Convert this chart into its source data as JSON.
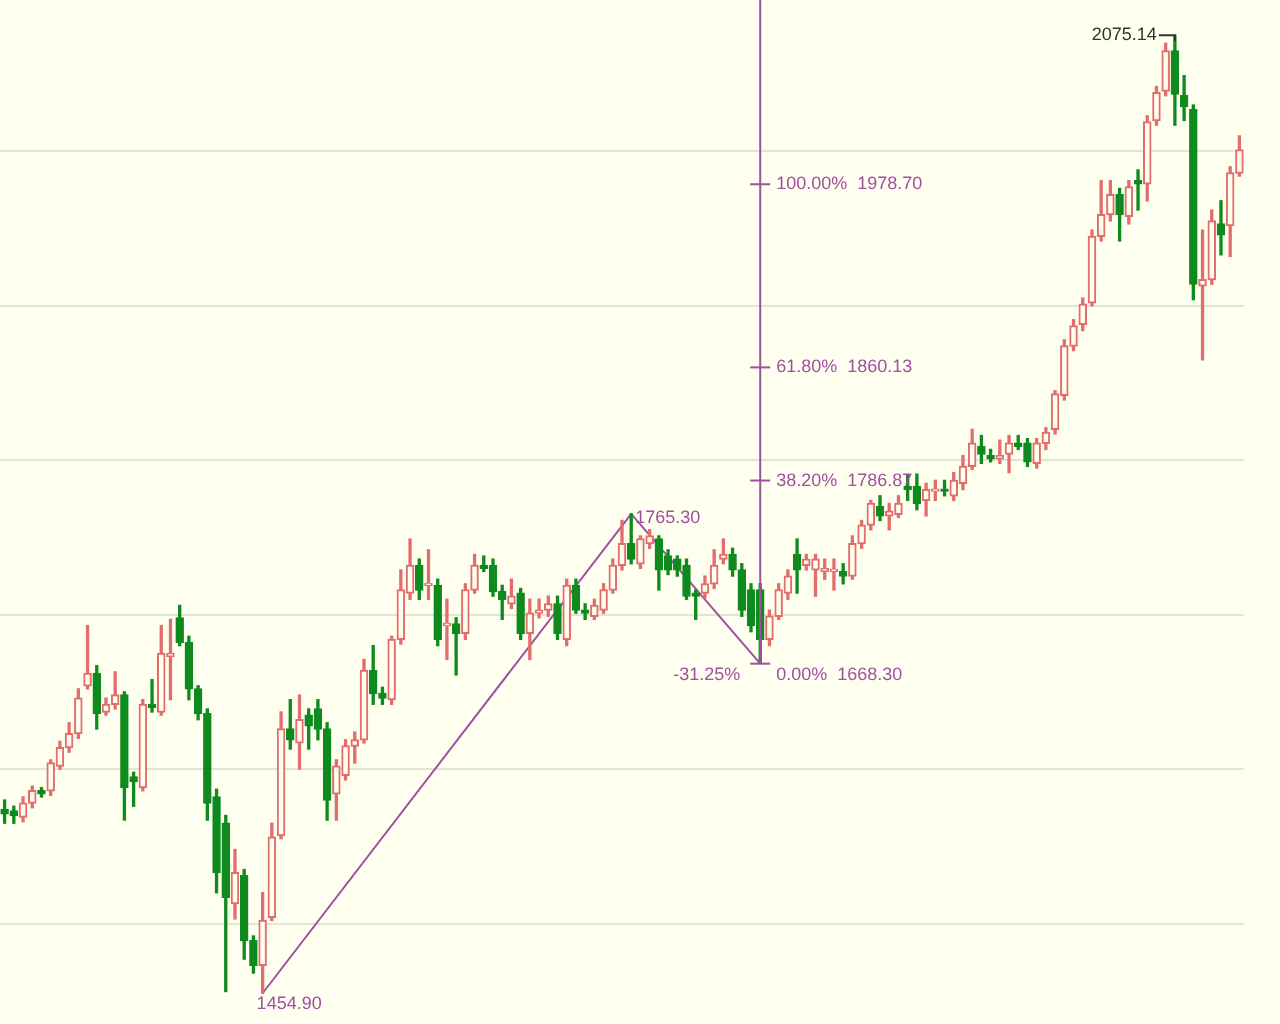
{
  "chart_data": {
    "type": "candlestick",
    "categories": [
      null,
      null,
      null,
      null,
      null,
      null,
      null,
      null,
      null,
      null,
      null,
      null,
      null,
      null,
      null,
      null,
      null,
      null,
      null,
      null,
      null,
      null,
      null,
      null,
      null,
      null,
      null,
      null,
      null,
      null,
      null,
      null,
      null,
      null,
      null,
      null,
      null,
      null,
      null,
      null,
      null,
      null,
      null,
      null,
      null,
      null,
      null,
      null,
      null,
      null,
      null,
      null,
      null,
      null,
      null,
      null,
      null,
      null,
      null,
      null,
      null,
      null,
      null,
      null,
      null,
      null,
      null,
      null,
      null,
      null,
      null,
      null,
      null,
      null,
      null,
      null,
      null,
      null,
      null,
      null,
      null,
      null,
      null,
      null,
      null,
      null,
      null,
      null,
      null,
      null,
      null,
      null,
      null,
      null,
      null,
      null,
      null,
      null,
      null,
      null,
      null,
      null,
      null,
      null,
      null,
      null,
      null,
      null,
      null,
      null,
      null,
      null,
      null,
      null,
      null,
      null,
      null,
      null,
      null,
      null,
      null,
      null,
      null,
      null,
      null,
      null,
      null,
      null,
      null,
      null,
      null,
      null,
      null,
      null,
      null
    ],
    "ohlc": [
      [
        1574,
        1580,
        1565,
        1571
      ],
      [
        1573,
        1576,
        1565,
        1570
      ],
      [
        1569,
        1582,
        1566,
        1578
      ],
      [
        1578,
        1589,
        1575,
        1586
      ],
      [
        1586,
        1588,
        1582,
        1584
      ],
      [
        1586,
        1606,
        1583,
        1604
      ],
      [
        1602,
        1618,
        1600,
        1614
      ],
      [
        1614,
        1630,
        1611,
        1623
      ],
      [
        1623,
        1652,
        1620,
        1646
      ],
      [
        1654,
        1693,
        1652,
        1662
      ],
      [
        1662,
        1667,
        1626,
        1636
      ],
      [
        1637,
        1646,
        1635,
        1642
      ],
      [
        1642,
        1663,
        1639,
        1648
      ],
      [
        1648,
        1650,
        1567,
        1588
      ],
      [
        1595,
        1598,
        1576,
        1592
      ],
      [
        1588,
        1645,
        1586,
        1642
      ],
      [
        1642,
        1658,
        1637,
        1640
      ],
      [
        1637,
        1693,
        1635,
        1675
      ],
      [
        1673,
        1697,
        1645,
        1675
      ],
      [
        1698,
        1706,
        1680,
        1682
      ],
      [
        1682,
        1686,
        1645,
        1652
      ],
      [
        1652,
        1654,
        1632,
        1636
      ],
      [
        1636,
        1639,
        1567,
        1578
      ],
      [
        1582,
        1587,
        1520,
        1533
      ],
      [
        1565,
        1570,
        1456,
        1517
      ],
      [
        1513,
        1548,
        1503,
        1533
      ],
      [
        1531,
        1535,
        1477,
        1489
      ],
      [
        1489,
        1492,
        1468,
        1473
      ],
      [
        1473,
        1520,
        1454.9,
        1502
      ],
      [
        1504,
        1565,
        1502,
        1556
      ],
      [
        1557,
        1637,
        1555,
        1626
      ],
      [
        1626,
        1645,
        1613,
        1619
      ],
      [
        1617,
        1648,
        1600,
        1632
      ],
      [
        1635,
        1639,
        1613,
        1628
      ],
      [
        1639,
        1645,
        1619,
        1626
      ],
      [
        1626,
        1630,
        1567,
        1580
      ],
      [
        1584,
        1606,
        1567,
        1602
      ],
      [
        1596,
        1619,
        1593,
        1615
      ],
      [
        1615,
        1624,
        1604,
        1619
      ],
      [
        1619,
        1671,
        1617,
        1664
      ],
      [
        1664,
        1680,
        1642,
        1649
      ],
      [
        1649,
        1653,
        1642,
        1646
      ],
      [
        1645,
        1686,
        1642,
        1684
      ],
      [
        1684,
        1729,
        1681,
        1716
      ],
      [
        1714,
        1749,
        1710,
        1732
      ],
      [
        1732,
        1736,
        1710,
        1716
      ],
      [
        1719,
        1742,
        1710,
        1720
      ],
      [
        1719,
        1723,
        1680,
        1684
      ],
      [
        1693,
        1710,
        1671,
        1694
      ],
      [
        1694,
        1698,
        1661,
        1688
      ],
      [
        1688,
        1720,
        1684,
        1716
      ],
      [
        1716,
        1739,
        1714,
        1732
      ],
      [
        1732,
        1738,
        1728,
        1730
      ],
      [
        1732,
        1736,
        1712,
        1715
      ],
      [
        1715,
        1719,
        1697,
        1710
      ],
      [
        1707,
        1723,
        1704,
        1712
      ],
      [
        1714,
        1717,
        1684,
        1688
      ],
      [
        1688,
        1710,
        1671,
        1701
      ],
      [
        1701,
        1710,
        1698,
        1703
      ],
      [
        1703,
        1712,
        1699,
        1707
      ],
      [
        1707,
        1712,
        1684,
        1688
      ],
      [
        1684,
        1723,
        1680,
        1719
      ],
      [
        1719,
        1723,
        1701,
        1703
      ],
      [
        1703,
        1707,
        1697,
        1701
      ],
      [
        1699,
        1710,
        1697,
        1706
      ],
      [
        1703,
        1720,
        1701,
        1716
      ],
      [
        1716,
        1736,
        1714,
        1732
      ],
      [
        1732,
        1761,
        1729,
        1746
      ],
      [
        1746,
        1765.3,
        1733,
        1736
      ],
      [
        1733,
        1751,
        1730,
        1749
      ],
      [
        1746,
        1755,
        1743,
        1751
      ],
      [
        1749,
        1751,
        1716,
        1729
      ],
      [
        1738,
        1742,
        1726,
        1729
      ],
      [
        1736,
        1738,
        1725,
        1729
      ],
      [
        1732,
        1736,
        1710,
        1712
      ],
      [
        1714,
        1716,
        1697,
        1712
      ],
      [
        1714,
        1725,
        1711,
        1720
      ],
      [
        1720,
        1742,
        1717,
        1732
      ],
      [
        1736,
        1749,
        1733,
        1739
      ],
      [
        1739,
        1743,
        1725,
        1729
      ],
      [
        1729,
        1733,
        1699,
        1703
      ],
      [
        1716,
        1720,
        1689,
        1693
      ],
      [
        1716,
        1720,
        1668.3,
        1684
      ],
      [
        1684,
        1703,
        1680,
        1699
      ],
      [
        1699,
        1720,
        1697,
        1716
      ],
      [
        1714,
        1729,
        1710,
        1725
      ],
      [
        1739,
        1749,
        1714,
        1729
      ],
      [
        1732,
        1739,
        1729,
        1736
      ],
      [
        1729,
        1739,
        1712,
        1736
      ],
      [
        1728,
        1736,
        1723,
        1730
      ],
      [
        1728,
        1736,
        1716,
        1729
      ],
      [
        1728,
        1733,
        1720,
        1725
      ],
      [
        1725,
        1751,
        1723,
        1746
      ],
      [
        1746,
        1761,
        1743,
        1758
      ],
      [
        1758,
        1774,
        1755,
        1772
      ],
      [
        1770,
        1777,
        1761,
        1764
      ],
      [
        1764,
        1772,
        1755,
        1767
      ],
      [
        1765,
        1777,
        1763,
        1772
      ],
      [
        1783,
        1790,
        1774,
        1781
      ],
      [
        1783,
        1791,
        1768,
        1772
      ],
      [
        1774,
        1785,
        1764,
        1781
      ],
      [
        1780,
        1787,
        1774,
        1781
      ],
      [
        1781,
        1787,
        1777,
        1780
      ],
      [
        1777,
        1792,
        1774,
        1787
      ],
      [
        1785,
        1803,
        1781,
        1796
      ],
      [
        1796,
        1820,
        1794,
        1811
      ],
      [
        1809,
        1816,
        1798,
        1804
      ],
      [
        1803,
        1807,
        1799,
        1801
      ],
      [
        1801,
        1813,
        1798,
        1803
      ],
      [
        1804,
        1816,
        1792,
        1811
      ],
      [
        1811,
        1816,
        1807,
        1809
      ],
      [
        1811,
        1814,
        1796,
        1799
      ],
      [
        1798,
        1814,
        1795,
        1811
      ],
      [
        1811,
        1821,
        1807,
        1818
      ],
      [
        1820,
        1845,
        1817,
        1843
      ],
      [
        1842,
        1878,
        1839,
        1874
      ],
      [
        1874,
        1891,
        1871,
        1887
      ],
      [
        1888,
        1905,
        1884,
        1901
      ],
      [
        1902,
        1949,
        1900,
        1945
      ],
      [
        1945,
        1981,
        1942,
        1959
      ],
      [
        1959,
        1981,
        1955,
        1972
      ],
      [
        1972,
        1976,
        1942,
        1959
      ],
      [
        1958,
        1981,
        1953,
        1977
      ],
      [
        1981,
        1988,
        1962,
        1979
      ],
      [
        1979,
        2023,
        1968,
        2019
      ],
      [
        2020,
        2042,
        2017,
        2038
      ],
      [
        2039,
        2070,
        2036,
        2065
      ],
      [
        2065,
        2075.14,
        2017,
        2037
      ],
      [
        2036,
        2049,
        2020,
        2029
      ],
      [
        2027,
        2030,
        1904,
        1914
      ],
      [
        1913,
        1949,
        1865,
        1917
      ],
      [
        1917,
        1962,
        1914,
        1955
      ],
      [
        1953,
        1968,
        1933,
        1946
      ],
      [
        1952,
        1990,
        1932,
        1986
      ],
      [
        1986,
        2010,
        1984,
        2001
      ]
    ],
    "colors": [
      "#0f8a1e",
      "#0f8a1e",
      "#e36c6c",
      "#e36c6c",
      "#0f8a1e",
      "#e36c6c",
      "#e36c6c",
      "#e36c6c",
      "#e36c6c",
      "#e36c6c",
      "#0f8a1e",
      "#e36c6c",
      "#e36c6c",
      "#0f8a1e",
      "#0f8a1e",
      "#e36c6c",
      "#0f8a1e",
      "#e36c6c",
      "#e36c6c",
      "#0f8a1e",
      "#0f8a1e",
      "#0f8a1e",
      "#0f8a1e",
      "#0f8a1e",
      "#0f8a1e",
      "#e36c6c",
      "#0f8a1e",
      "#0f8a1e",
      "#e36c6c",
      "#e36c6c",
      "#e36c6c",
      "#0f8a1e",
      "#e36c6c",
      "#0f8a1e",
      "#0f8a1e",
      "#0f8a1e",
      "#e36c6c",
      "#e36c6c",
      "#e36c6c",
      "#e36c6c",
      "#0f8a1e",
      "#0f8a1e",
      "#e36c6c",
      "#e36c6c",
      "#e36c6c",
      "#0f8a1e",
      "#e36c6c",
      "#0f8a1e",
      "#e36c6c",
      "#0f8a1e",
      "#e36c6c",
      "#e36c6c",
      "#0f8a1e",
      "#0f8a1e",
      "#0f8a1e",
      "#e36c6c",
      "#0f8a1e",
      "#e36c6c",
      "#e36c6c",
      "#e36c6c",
      "#0f8a1e",
      "#e36c6c",
      "#0f8a1e",
      "#0f8a1e",
      "#e36c6c",
      "#e36c6c",
      "#e36c6c",
      "#e36c6c",
      "#0f8a1e",
      "#e36c6c",
      "#e36c6c",
      "#0f8a1e",
      "#0f8a1e",
      "#0f8a1e",
      "#0f8a1e",
      "#0f8a1e",
      "#e36c6c",
      "#e36c6c",
      "#e36c6c",
      "#0f8a1e",
      "#0f8a1e",
      "#0f8a1e",
      "#0f8a1e",
      "#e36c6c",
      "#e36c6c",
      "#e36c6c",
      "#0f8a1e",
      "#e36c6c",
      "#e36c6c",
      "#e36c6c",
      "#e36c6c",
      "#0f8a1e",
      "#e36c6c",
      "#e36c6c",
      "#e36c6c",
      "#0f8a1e",
      "#e36c6c",
      "#e36c6c",
      "#0f8a1e",
      "#0f8a1e",
      "#e36c6c",
      "#e36c6c",
      "#0f8a1e",
      "#e36c6c",
      "#e36c6c",
      "#e36c6c",
      "#0f8a1e",
      "#0f8a1e",
      "#e36c6c",
      "#e36c6c",
      "#0f8a1e",
      "#0f8a1e",
      "#e36c6c",
      "#e36c6c",
      "#e36c6c",
      "#e36c6c",
      "#e36c6c",
      "#e36c6c",
      "#e36c6c",
      "#e36c6c",
      "#e36c6c",
      "#0f8a1e",
      "#e36c6c",
      "#0f8a1e",
      "#e36c6c",
      "#e36c6c",
      "#e36c6c",
      "#0f8a1e",
      "#0f8a1e",
      "#0f8a1e",
      "#e36c6c",
      "#e36c6c",
      "#0f8a1e",
      "#e36c6c",
      "#e36c6c"
    ],
    "series": [
      {
        "type": "line",
        "color": "#a050a0",
        "value_labels": [
          null,
          null,
          null,
          null,
          null,
          null,
          null,
          null,
          null,
          null,
          null,
          null,
          null,
          null,
          null,
          null,
          null,
          null,
          null,
          null,
          null,
          null,
          null,
          null,
          null,
          null,
          null,
          null,
          "1454.90",
          null,
          null,
          null,
          null,
          null,
          null,
          null,
          null,
          null,
          null,
          null,
          null,
          null,
          null,
          null,
          null,
          null,
          null,
          null,
          null,
          null,
          null,
          null,
          null,
          null,
          null,
          null,
          null,
          null,
          null,
          null,
          null,
          null,
          null,
          null,
          null,
          null,
          null,
          null,
          "1765.30",
          null,
          null,
          null,
          null,
          null,
          null,
          null,
          null,
          null,
          null,
          null,
          null,
          null,
          null,
          null,
          null,
          null,
          null,
          null,
          null,
          null,
          null,
          null,
          null,
          null,
          null,
          null,
          null,
          null,
          null,
          null,
          null,
          null,
          null,
          null,
          null,
          null,
          null,
          null,
          null,
          null,
          null,
          null,
          null,
          null,
          null,
          null,
          null,
          null,
          null,
          null,
          null,
          null,
          null,
          null,
          null,
          null,
          null,
          null,
          null,
          null,
          null,
          null,
          null,
          null,
          null
        ],
        "values": [
          null,
          null,
          null,
          null,
          null,
          null,
          null,
          null,
          null,
          null,
          null,
          null,
          null,
          null,
          null,
          null,
          null,
          null,
          null,
          null,
          null,
          null,
          null,
          null,
          null,
          null,
          null,
          null,
          1454.9,
          null,
          null,
          null,
          null,
          null,
          null,
          null,
          null,
          null,
          null,
          null,
          null,
          null,
          null,
          null,
          null,
          null,
          null,
          null,
          null,
          null,
          null,
          null,
          null,
          null,
          null,
          null,
          null,
          null,
          null,
          null,
          null,
          null,
          null,
          null,
          null,
          null,
          null,
          null,
          1765.3,
          null,
          null,
          null,
          null,
          null,
          null,
          null,
          null,
          null,
          null,
          null,
          null,
          null,
          1668.3,
          null,
          null,
          null,
          null,
          null,
          null,
          null,
          null,
          null,
          null,
          null,
          null,
          null,
          null,
          null,
          null,
          null,
          null,
          null,
          null,
          null,
          null,
          null,
          null,
          null,
          null,
          null,
          null,
          null,
          null,
          null,
          null,
          null,
          null,
          null,
          null,
          null,
          null,
          null,
          null,
          null,
          null,
          null,
          null,
          null,
          null,
          null,
          null,
          null,
          null,
          null,
          null
        ]
      }
    ],
    "ylim": [
      1435,
      2098
    ],
    "yticks": [
      {
        "value": 1500,
        "label": null
      },
      {
        "value": 1600,
        "label": null
      },
      {
        "value": 1700,
        "label": null
      },
      {
        "value": 1800,
        "label": null
      },
      {
        "value": 1900,
        "label": null
      },
      {
        "value": 2000,
        "label": null
      }
    ],
    "grid": "y",
    "ref_lines": [
      {
        "axis": "y",
        "value": 1978.7,
        "label": "100.00%  1978.70",
        "color": "#a050a0"
      },
      {
        "axis": "y",
        "value": 1860.13,
        "label": "61.80%  1860.13",
        "color": "#a050a0"
      },
      {
        "axis": "y",
        "value": 1786.87,
        "label": "38.20%  1786.87",
        "color": "#a050a0"
      },
      {
        "axis": "y",
        "value": 1668.3,
        "label": "0.00%  1668.30",
        "color": "#a050a0"
      }
    ],
    "annotations": [
      "2075.14",
      "-31.25%"
    ]
  }
}
